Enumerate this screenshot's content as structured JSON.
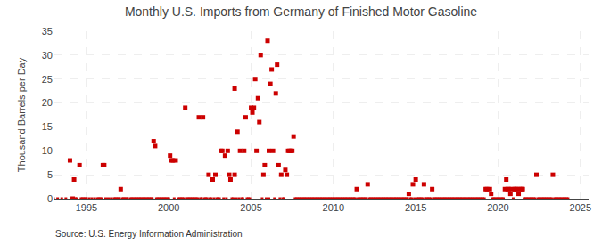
{
  "chart_data": {
    "type": "scatter",
    "title": "Monthly U.S. Imports from Germany of Finished Motor Gasoline",
    "ylabel": "Thousand Barrels per Day",
    "annotations": [
      "Source: U.S. Energy Information Administration"
    ],
    "xlim": [
      1993.0,
      2025.5
    ],
    "xticks": [
      1995,
      2000,
      2005,
      2010,
      2015,
      2020,
      2025
    ],
    "ylim": [
      0,
      35
    ],
    "yticks": [
      0,
      5,
      10,
      15,
      20,
      25,
      30,
      35
    ],
    "grid": true,
    "series": [
      {
        "color": "#cc0000",
        "marker": "square",
        "x": [
          1994.0,
          1994.17,
          1994.25,
          1994.58,
          1996.0,
          1996.08,
          1997.08,
          1999.08,
          1999.17,
          2000.08,
          2000.17,
          2000.25,
          2000.42,
          2001.0,
          2001.83,
          2002.08,
          2002.42,
          2002.67,
          2002.83,
          2003.17,
          2003.25,
          2003.42,
          2003.58,
          2003.67,
          2003.75,
          2004.0,
          2004.0,
          2004.17,
          2004.33,
          2004.58,
          2004.67,
          2005.0,
          2005.08,
          2005.17,
          2005.25,
          2005.33,
          2005.42,
          2005.5,
          2005.58,
          2005.75,
          2005.83,
          2006.0,
          2006.08,
          2006.17,
          2006.25,
          2006.33,
          2006.5,
          2006.58,
          2006.67,
          2006.83,
          2007.08,
          2007.17,
          2007.25,
          2007.33,
          2007.42,
          2007.5,
          2007.58,
          2011.42,
          2012.08,
          2014.58,
          2014.83,
          2015.0,
          2015.5,
          2016.0,
          2019.25,
          2019.33,
          2019.5,
          2019.58,
          2020.42,
          2020.5,
          2020.58,
          2020.67,
          2020.75,
          2020.83,
          2021.0,
          2021.08,
          2021.17,
          2021.25,
          2021.33,
          2021.42,
          2021.5,
          2022.33,
          2023.33
        ],
        "values": [
          8,
          0,
          4,
          7,
          7,
          7,
          2,
          12,
          11,
          9,
          8,
          8,
          8,
          19,
          17,
          17,
          5,
          4,
          5,
          10,
          10,
          9,
          10,
          5,
          4,
          5,
          23,
          14,
          10,
          10,
          17,
          19,
          18,
          19,
          25,
          10,
          21,
          16,
          30,
          5,
          7,
          33,
          10,
          24,
          27,
          10,
          22,
          28,
          7,
          5,
          6,
          5,
          10,
          10,
          10,
          10,
          13,
          2,
          3,
          1,
          3,
          4,
          3,
          2,
          2,
          2,
          2,
          1,
          2,
          4,
          2,
          2,
          1,
          2,
          2,
          2,
          2,
          1,
          2,
          2,
          2,
          5,
          5
        ]
      },
      {
        "color": "#cc0000",
        "marker": "square",
        "x": [
          1993.0,
          1993.25,
          1993.5,
          1993.75,
          1994.08,
          1994.33,
          1994.42,
          1994.67,
          1994.75,
          1994.83,
          1994.92,
          1995.0,
          1995.17,
          1995.33,
          1995.5,
          1995.67,
          1995.75,
          1995.83,
          1995.92,
          1996.17,
          1996.33,
          1996.5,
          1996.67,
          1996.75,
          1996.83,
          1996.92,
          1997.0,
          1997.17,
          1997.25,
          1997.33,
          1997.42,
          1997.5,
          1997.67,
          1997.75,
          1997.83,
          1997.92,
          1998.0,
          1998.08,
          1998.17,
          1998.25,
          1998.33,
          1998.42,
          1998.5,
          1998.58,
          1998.67,
          1998.75,
          1998.83,
          1998.92,
          1999.0,
          1999.25,
          1999.33,
          1999.42,
          1999.5,
          1999.58,
          1999.67,
          1999.75,
          1999.83,
          1999.92,
          2000.0,
          2000.33,
          2000.58,
          2000.67,
          2000.75,
          2000.83,
          2000.92,
          2001.08,
          2001.17,
          2001.25,
          2001.33,
          2001.42,
          2001.5,
          2001.58,
          2001.67,
          2001.75,
          2001.92,
          2002.0,
          2002.17,
          2002.25,
          2002.33,
          2002.5,
          2002.58,
          2002.75,
          2002.92,
          2003.0,
          2003.08,
          2003.33,
          2003.5,
          2003.83,
          2003.92,
          2004.08,
          2004.25,
          2004.42,
          2004.5,
          2004.75,
          2004.83,
          2004.92,
          2005.67,
          2005.92,
          2006.08,
          2006.42,
          2006.75,
          2006.92,
          2007.0,
          2007.67,
          2007.75,
          2007.83,
          2007.92,
          2008.0,
          2008.08,
          2008.17,
          2008.25,
          2008.33,
          2008.42,
          2008.5,
          2008.58,
          2008.67,
          2008.75,
          2008.83,
          2008.92,
          2009.0,
          2009.08,
          2009.17,
          2009.25,
          2009.33,
          2009.42,
          2009.5,
          2009.58,
          2009.67,
          2009.75,
          2009.83,
          2009.92,
          2010.0,
          2010.08,
          2010.17,
          2010.25,
          2010.33,
          2010.42,
          2010.5,
          2010.58,
          2010.67,
          2010.75,
          2010.83,
          2010.92,
          2011.0,
          2011.08,
          2011.17,
          2011.25,
          2011.33,
          2011.5,
          2011.58,
          2011.67,
          2011.75,
          2011.83,
          2011.92,
          2012.0,
          2012.17,
          2012.25,
          2012.33,
          2012.42,
          2012.5,
          2012.58,
          2012.67,
          2012.75,
          2012.83,
          2012.92,
          2013.0,
          2013.08,
          2013.17,
          2013.25,
          2013.33,
          2013.42,
          2013.5,
          2013.58,
          2013.67,
          2013.75,
          2013.83,
          2013.92,
          2014.0,
          2014.08,
          2014.17,
          2014.25,
          2014.33,
          2014.42,
          2014.5,
          2014.67,
          2014.75,
          2014.92,
          2015.08,
          2015.17,
          2015.25,
          2015.33,
          2015.42,
          2015.58,
          2015.67,
          2015.75,
          2015.83,
          2015.92,
          2016.08,
          2016.17,
          2016.25,
          2016.33,
          2016.42,
          2016.5,
          2016.58,
          2016.67,
          2016.75,
          2016.83,
          2016.92,
          2017.0,
          2017.08,
          2017.17,
          2017.25,
          2017.33,
          2017.42,
          2017.5,
          2017.58,
          2017.67,
          2017.75,
          2017.83,
          2017.92,
          2018.0,
          2018.08,
          2018.17,
          2018.25,
          2018.33,
          2018.42,
          2018.5,
          2018.58,
          2018.67,
          2018.75,
          2018.83,
          2018.92,
          2019.0,
          2019.08,
          2019.17,
          2019.67,
          2019.75,
          2019.83,
          2019.92,
          2020.0,
          2020.08,
          2020.17,
          2020.25,
          2020.33,
          2020.92,
          2021.58,
          2021.67,
          2021.75,
          2021.83,
          2021.92,
          2022.0,
          2022.08,
          2022.17,
          2022.25,
          2022.42,
          2022.5,
          2022.58,
          2022.67,
          2022.75,
          2022.83,
          2022.92,
          2023.0,
          2023.08,
          2023.17,
          2023.25,
          2023.42,
          2023.5,
          2023.58,
          2023.67,
          2023.75,
          2023.83,
          2023.92,
          2024.0,
          2024.08,
          2024.17,
          2024.25
        ],
        "values": [
          0,
          0,
          0,
          0,
          0,
          0,
          0,
          0,
          0,
          0,
          0,
          0,
          0,
          0,
          0,
          0,
          0,
          0,
          0,
          0,
          0,
          0,
          0,
          0,
          0,
          0,
          0,
          0,
          0,
          0,
          0,
          0,
          0,
          0,
          0,
          0,
          0,
          0,
          0,
          0,
          0,
          0,
          0,
          0,
          0,
          0,
          0,
          0,
          0,
          0,
          0,
          0,
          0,
          0,
          0,
          0,
          0,
          0,
          0,
          0,
          0,
          0,
          0,
          0,
          0,
          0,
          0,
          0,
          0,
          0,
          0,
          0,
          0,
          0,
          0,
          0,
          0,
          0,
          0,
          0,
          0,
          0,
          0,
          0,
          0,
          0,
          0,
          0,
          0,
          0,
          0,
          0,
          0,
          0,
          0,
          0,
          0,
          0,
          0,
          0,
          0,
          0,
          0,
          0,
          0,
          0,
          0,
          0,
          0,
          0,
          0,
          0,
          0,
          0,
          0,
          0,
          0,
          0,
          0,
          0,
          0,
          0,
          0,
          0,
          0,
          0,
          0,
          0,
          0,
          0,
          0,
          0,
          0,
          0,
          0,
          0,
          0,
          0,
          0,
          0,
          0,
          0,
          0,
          0,
          0,
          0,
          0,
          0,
          0,
          0,
          0,
          0,
          0,
          0,
          0,
          0,
          0,
          0,
          0,
          0,
          0,
          0,
          0,
          0,
          0,
          0,
          0,
          0,
          0,
          0,
          0,
          0,
          0,
          0,
          0,
          0,
          0,
          0,
          0,
          0,
          0,
          0,
          0,
          0,
          0,
          0,
          0,
          0,
          0,
          0,
          0,
          0,
          0,
          0,
          0,
          0,
          0,
          0,
          0,
          0,
          0,
          0,
          0,
          0,
          0,
          0,
          0,
          0,
          0,
          0,
          0,
          0,
          0,
          0,
          0,
          0,
          0,
          0,
          0,
          0,
          0,
          0,
          0,
          0,
          0,
          0,
          0,
          0,
          0,
          0,
          0,
          0,
          0,
          0,
          0,
          0,
          0,
          0,
          0,
          0,
          0,
          0,
          0,
          0,
          0,
          0,
          0,
          0,
          0,
          0,
          0,
          0,
          0,
          0,
          0,
          0,
          0,
          0,
          0,
          0,
          0,
          0,
          0,
          0,
          0,
          0,
          0,
          0,
          0,
          0,
          0,
          0,
          0,
          0,
          0,
          0
        ]
      }
    ]
  }
}
